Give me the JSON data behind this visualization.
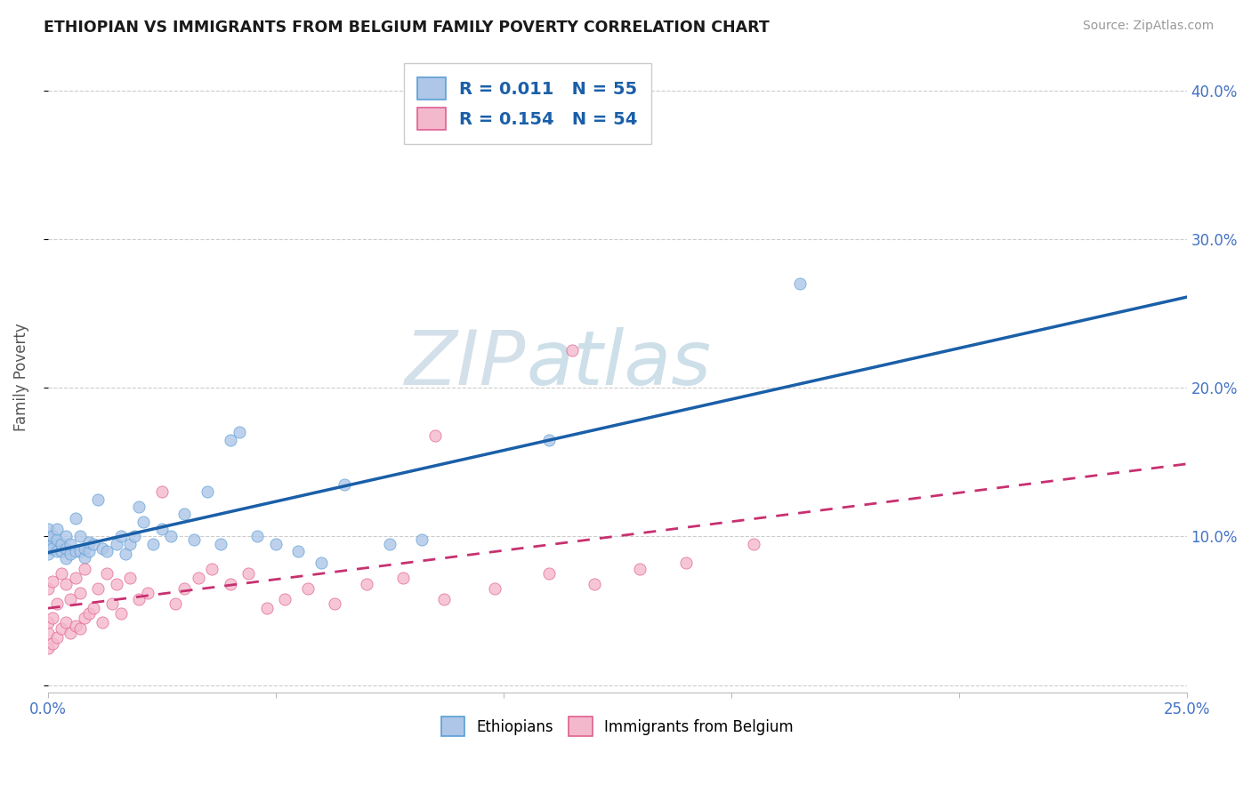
{
  "title": "ETHIOPIAN VS IMMIGRANTS FROM BELGIUM FAMILY POVERTY CORRELATION CHART",
  "source": "Source: ZipAtlas.com",
  "ylabel": "Family Poverty",
  "legend_labels": [
    "Ethiopians",
    "Immigrants from Belgium"
  ],
  "legend_r_blue": "R = 0.011",
  "legend_n_blue": "N = 55",
  "legend_r_pink": "R = 0.154",
  "legend_n_pink": "N = 54",
  "color_blue_fill": "#aec6e8",
  "color_pink_fill": "#f4b8cc",
  "color_blue_edge": "#5a9fd4",
  "color_pink_edge": "#e06090",
  "color_blue_line": "#1a5fa8",
  "color_pink_line": "#c83070",
  "xlim": [
    0.0,
    0.25
  ],
  "ylim": [
    -0.005,
    0.42
  ],
  "yticks": [
    0.0,
    0.1,
    0.2,
    0.3,
    0.4
  ],
  "ytick_labels": [
    "",
    "10.0%",
    "20.0%",
    "30.0%",
    "40.0%"
  ],
  "ethiopians_x": [
    0.0,
    0.0,
    0.0,
    0.0,
    0.0,
    0.001,
    0.001,
    0.001,
    0.002,
    0.002,
    0.002,
    0.003,
    0.003,
    0.004,
    0.004,
    0.004,
    0.005,
    0.005,
    0.006,
    0.006,
    0.007,
    0.007,
    0.008,
    0.008,
    0.009,
    0.009,
    0.01,
    0.011,
    0.012,
    0.013,
    0.015,
    0.016,
    0.017,
    0.018,
    0.019,
    0.02,
    0.021,
    0.023,
    0.025,
    0.027,
    0.03,
    0.032,
    0.035,
    0.038,
    0.04,
    0.042,
    0.046,
    0.05,
    0.055,
    0.06,
    0.065,
    0.075,
    0.082,
    0.11,
    0.165
  ],
  "ethiopians_y": [
    0.095,
    0.1,
    0.105,
    0.092,
    0.088,
    0.095,
    0.1,
    0.092,
    0.09,
    0.098,
    0.105,
    0.09,
    0.095,
    0.085,
    0.092,
    0.1,
    0.088,
    0.095,
    0.09,
    0.112,
    0.09,
    0.1,
    0.086,
    0.092,
    0.09,
    0.096,
    0.095,
    0.125,
    0.092,
    0.09,
    0.095,
    0.1,
    0.088,
    0.095,
    0.1,
    0.12,
    0.11,
    0.095,
    0.105,
    0.1,
    0.115,
    0.098,
    0.13,
    0.095,
    0.165,
    0.17,
    0.1,
    0.095,
    0.09,
    0.082,
    0.135,
    0.095,
    0.098,
    0.165,
    0.27
  ],
  "belgium_x": [
    0.0,
    0.0,
    0.0,
    0.0,
    0.001,
    0.001,
    0.001,
    0.002,
    0.002,
    0.003,
    0.003,
    0.004,
    0.004,
    0.005,
    0.005,
    0.006,
    0.006,
    0.007,
    0.007,
    0.008,
    0.008,
    0.009,
    0.01,
    0.011,
    0.012,
    0.013,
    0.014,
    0.015,
    0.016,
    0.018,
    0.02,
    0.022,
    0.025,
    0.028,
    0.03,
    0.033,
    0.036,
    0.04,
    0.044,
    0.048,
    0.052,
    0.057,
    0.063,
    0.07,
    0.078,
    0.087,
    0.098,
    0.11,
    0.12,
    0.13,
    0.14,
    0.155,
    0.115,
    0.085
  ],
  "belgium_y": [
    0.025,
    0.035,
    0.042,
    0.065,
    0.028,
    0.045,
    0.07,
    0.032,
    0.055,
    0.038,
    0.075,
    0.042,
    0.068,
    0.035,
    0.058,
    0.04,
    0.072,
    0.038,
    0.062,
    0.045,
    0.078,
    0.048,
    0.052,
    0.065,
    0.042,
    0.075,
    0.055,
    0.068,
    0.048,
    0.072,
    0.058,
    0.062,
    0.13,
    0.055,
    0.065,
    0.072,
    0.078,
    0.068,
    0.075,
    0.052,
    0.058,
    0.065,
    0.055,
    0.068,
    0.072,
    0.058,
    0.065,
    0.075,
    0.068,
    0.078,
    0.082,
    0.095,
    0.225,
    0.168
  ]
}
